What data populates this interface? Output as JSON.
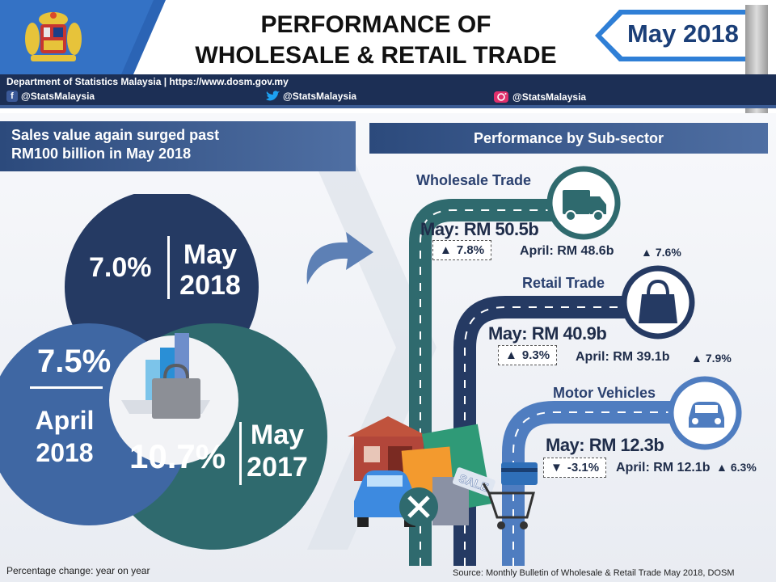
{
  "header": {
    "title_line1": "PERFORMANCE OF",
    "title_line2": "WHOLESALE & RETAIL TRADE",
    "date_label": "May 2018",
    "dept_line": "Department of Statistics Malaysia  | https://www.dosm.gov.my",
    "facebook": "@StatsMalaysia",
    "twitter": "@StatsMalaysia",
    "instagram": "@StatsMalaysia"
  },
  "headline": {
    "line1": "Sales value again surged past",
    "line2": "RM100 billion in May 2018"
  },
  "overall": {
    "may2018_pct": "7.0%",
    "may2018_label1": "May",
    "may2018_label2": "2018",
    "april2018_pct": "7.5%",
    "april2018_label1": "April",
    "april2018_label2": "2018",
    "may2017_pct": "10.7%",
    "may2017_label1": "May",
    "may2017_label2": "2017"
  },
  "subsector": {
    "title": "Performance by Sub-sector",
    "wholesale": {
      "name": "Wholesale Trade",
      "may": "May: RM 50.5b",
      "may_pct": "7.8%",
      "april": "April: RM 48.6b",
      "april_pct": "7.6%"
    },
    "retail": {
      "name": "Retail Trade",
      "may": "May: RM 40.9b",
      "may_pct": "9.3%",
      "april": "April: RM 39.1b",
      "april_pct": "7.9%"
    },
    "motor": {
      "name": "Motor Vehicles",
      "may": "May: RM 12.3b",
      "may_pct": "-3.1%",
      "april": "April: RM 12.1b",
      "april_pct": "6.3%"
    }
  },
  "sale_tag": "SALE",
  "footnote": "Percentage change: year on year",
  "source": "Source: Monthly Bulletin of Wholesale & Retail Trade May 2018, DOSM",
  "colors": {
    "navy": "#1c2f55",
    "dark_blue": "#253a63",
    "teal": "#2f6a6e",
    "mid_blue": "#3f67a3",
    "light_blue": "#7fa3d3"
  }
}
